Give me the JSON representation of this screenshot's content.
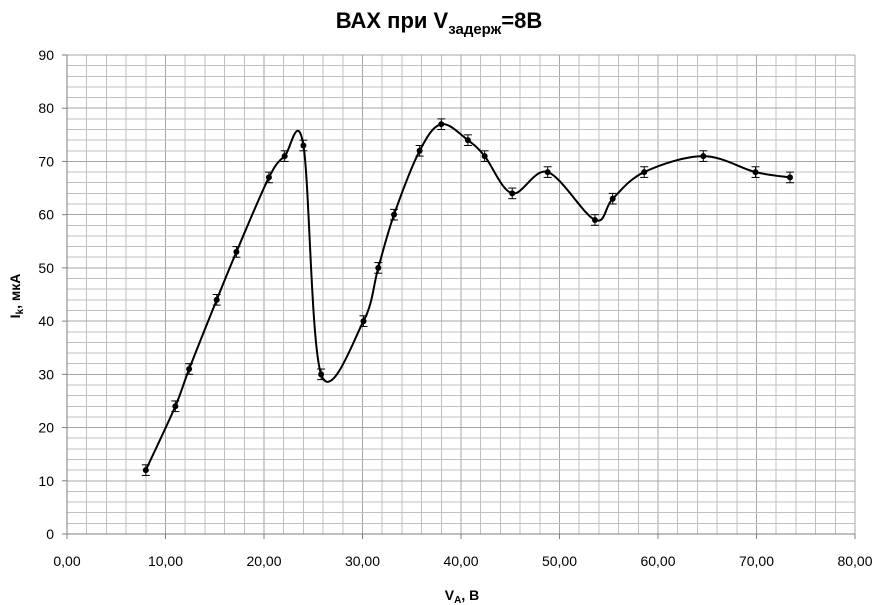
{
  "chart_data": {
    "type": "scatter",
    "title": {
      "main": "ВАХ при V",
      "sub": "задерж",
      "tail": "=8В"
    },
    "xlabel": {
      "main": "V",
      "sub": "A",
      "tail": ", В"
    },
    "ylabel": {
      "main": "I",
      "sub": "k",
      "tail": ", мкА"
    },
    "xlim": [
      0,
      80
    ],
    "ylim": [
      0,
      90
    ],
    "x_major_step": 10,
    "y_major_step": 10,
    "x_minor_step": 2,
    "y_minor_step": 2,
    "x_ticks": [
      "0,00",
      "10,00",
      "20,00",
      "30,00",
      "40,00",
      "50,00",
      "60,00",
      "70,00",
      "80,00"
    ],
    "y_ticks": [
      "0",
      "10",
      "20",
      "30",
      "40",
      "50",
      "60",
      "70",
      "80",
      "90"
    ],
    "grid": true,
    "legend": "none",
    "smooth_line": true,
    "error_bars": 1,
    "series": [
      {
        "points": [
          {
            "x": 8.0,
            "y": 12
          },
          {
            "x": 11.0,
            "y": 24
          },
          {
            "x": 12.4,
            "y": 31
          },
          {
            "x": 15.2,
            "y": 44
          },
          {
            "x": 17.2,
            "y": 53
          },
          {
            "x": 20.5,
            "y": 67
          },
          {
            "x": 22.1,
            "y": 71
          },
          {
            "x": 24.0,
            "y": 73
          },
          {
            "x": 25.8,
            "y": 30
          },
          {
            "x": 30.1,
            "y": 40
          },
          {
            "x": 31.6,
            "y": 50
          },
          {
            "x": 33.2,
            "y": 60
          },
          {
            "x": 35.8,
            "y": 72
          },
          {
            "x": 38.0,
            "y": 77
          },
          {
            "x": 40.7,
            "y": 74
          },
          {
            "x": 42.4,
            "y": 71
          },
          {
            "x": 45.2,
            "y": 64
          },
          {
            "x": 48.8,
            "y": 68
          },
          {
            "x": 53.6,
            "y": 59
          },
          {
            "x": 55.4,
            "y": 63
          },
          {
            "x": 58.6,
            "y": 68
          },
          {
            "x": 64.6,
            "y": 71
          },
          {
            "x": 69.9,
            "y": 68
          },
          {
            "x": 73.4,
            "y": 67
          }
        ]
      }
    ],
    "colors": {
      "line": "#000000",
      "marker": "#000000",
      "grid": "#c0c0c0",
      "axis": "#7f7f7f"
    }
  }
}
